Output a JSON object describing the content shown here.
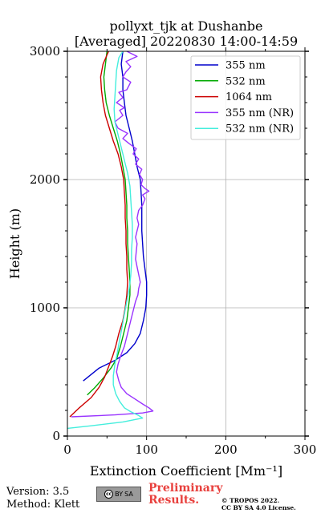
{
  "chart_data": {
    "type": "line",
    "title_line1": "pollyxt_tjk at Dushanbe",
    "title_line2": "[Averaged] 20220830 14:00-14:59",
    "xlabel": "Extinction Coefficient [Mm⁻¹]",
    "ylabel": "Height (m)",
    "xlim": [
      0,
      300
    ],
    "ylim": [
      0,
      3000
    ],
    "xticks": [
      0,
      100,
      200,
      300
    ],
    "yticks": [
      0,
      1000,
      2000,
      3000
    ],
    "grid": true,
    "legend_position": "top-right",
    "series": [
      {
        "name": "355 nm",
        "color": "#0000cc",
        "points": [
          [
            20,
            430
          ],
          [
            40,
            530
          ],
          [
            60,
            590
          ],
          [
            75,
            650
          ],
          [
            85,
            720
          ],
          [
            92,
            800
          ],
          [
            96,
            900
          ],
          [
            99,
            1000
          ],
          [
            100,
            1100
          ],
          [
            100,
            1200
          ],
          [
            98,
            1300
          ],
          [
            96,
            1400
          ],
          [
            95,
            1500
          ],
          [
            94,
            1600
          ],
          [
            94,
            1700
          ],
          [
            94,
            1800
          ],
          [
            93,
            1900
          ],
          [
            92,
            2000
          ],
          [
            88,
            2100
          ],
          [
            85,
            2200
          ],
          [
            82,
            2300
          ],
          [
            78,
            2400
          ],
          [
            74,
            2500
          ],
          [
            72,
            2600
          ],
          [
            70,
            2700
          ],
          [
            70,
            2800
          ],
          [
            68,
            2900
          ],
          [
            70,
            3000
          ]
        ]
      },
      {
        "name": "532 nm",
        "color": "#00aa00",
        "points": [
          [
            25,
            320
          ],
          [
            35,
            380
          ],
          [
            45,
            450
          ],
          [
            55,
            530
          ],
          [
            62,
            600
          ],
          [
            67,
            700
          ],
          [
            71,
            800
          ],
          [
            75,
            900
          ],
          [
            77,
            1000
          ],
          [
            79,
            1100
          ],
          [
            79,
            1200
          ],
          [
            78,
            1300
          ],
          [
            77,
            1400
          ],
          [
            76,
            1500
          ],
          [
            76,
            1600
          ],
          [
            75,
            1700
          ],
          [
            75,
            1800
          ],
          [
            74,
            1900
          ],
          [
            73,
            2000
          ],
          [
            70,
            2100
          ],
          [
            67,
            2200
          ],
          [
            63,
            2300
          ],
          [
            58,
            2400
          ],
          [
            53,
            2500
          ],
          [
            49,
            2600
          ],
          [
            47,
            2700
          ],
          [
            46,
            2800
          ],
          [
            48,
            2900
          ],
          [
            50,
            3000
          ]
        ]
      },
      {
        "name": "1064 nm",
        "color": "#cc0000",
        "points": [
          [
            3,
            150
          ],
          [
            15,
            220
          ],
          [
            30,
            300
          ],
          [
            40,
            380
          ],
          [
            47,
            460
          ],
          [
            52,
            540
          ],
          [
            57,
            620
          ],
          [
            61,
            700
          ],
          [
            65,
            800
          ],
          [
            70,
            900
          ],
          [
            73,
            1000
          ],
          [
            75,
            1100
          ],
          [
            76,
            1200
          ],
          [
            75,
            1300
          ],
          [
            75,
            1400
          ],
          [
            74,
            1500
          ],
          [
            74,
            1600
          ],
          [
            73,
            1700
          ],
          [
            73,
            1800
          ],
          [
            72,
            1900
          ],
          [
            71,
            2000
          ],
          [
            68,
            2100
          ],
          [
            64,
            2200
          ],
          [
            58,
            2300
          ],
          [
            53,
            2400
          ],
          [
            48,
            2500
          ],
          [
            45,
            2600
          ],
          [
            43,
            2700
          ],
          [
            42,
            2800
          ],
          [
            45,
            2900
          ],
          [
            52,
            3000
          ]
        ]
      },
      {
        "name": "355 nm (NR)",
        "color": "#9933ff",
        "points": [
          [
            5,
            150
          ],
          [
            60,
            165
          ],
          [
            95,
            180
          ],
          [
            108,
            195
          ],
          [
            103,
            220
          ],
          [
            95,
            250
          ],
          [
            85,
            290
          ],
          [
            75,
            330
          ],
          [
            68,
            380
          ],
          [
            65,
            430
          ],
          [
            62,
            500
          ],
          [
            64,
            560
          ],
          [
            67,
            620
          ],
          [
            72,
            700
          ],
          [
            76,
            800
          ],
          [
            80,
            900
          ],
          [
            84,
            1000
          ],
          [
            86,
            1050
          ],
          [
            89,
            1100
          ],
          [
            90,
            1150
          ],
          [
            92,
            1200
          ],
          [
            90,
            1260
          ],
          [
            88,
            1320
          ],
          [
            86,
            1380
          ],
          [
            87,
            1440
          ],
          [
            88,
            1500
          ],
          [
            86,
            1550
          ],
          [
            88,
            1600
          ],
          [
            90,
            1650
          ],
          [
            88,
            1700
          ],
          [
            90,
            1760
          ],
          [
            95,
            1800
          ],
          [
            98,
            1850
          ],
          [
            95,
            1880
          ],
          [
            103,
            1910
          ],
          [
            98,
            1930
          ],
          [
            93,
            1960
          ],
          [
            95,
            2000
          ],
          [
            91,
            2040
          ],
          [
            94,
            2080
          ],
          [
            86,
            2120
          ],
          [
            90,
            2160
          ],
          [
            83,
            2200
          ],
          [
            87,
            2240
          ],
          [
            78,
            2280
          ],
          [
            70,
            2320
          ],
          [
            76,
            2360
          ],
          [
            64,
            2400
          ],
          [
            60,
            2450
          ],
          [
            70,
            2500
          ],
          [
            66,
            2540
          ],
          [
            72,
            2560
          ],
          [
            62,
            2600
          ],
          [
            70,
            2640
          ],
          [
            65,
            2680
          ],
          [
            75,
            2700
          ],
          [
            80,
            2760
          ],
          [
            70,
            2800
          ],
          [
            74,
            2840
          ],
          [
            80,
            2880
          ],
          [
            74,
            2920
          ],
          [
            88,
            2960
          ],
          [
            75,
            3000
          ]
        ]
      },
      {
        "name": "532 nm (NR)",
        "color": "#44eedd",
        "points": [
          [
            0,
            60
          ],
          [
            30,
            80
          ],
          [
            70,
            110
          ],
          [
            95,
            140
          ],
          [
            90,
            160
          ],
          [
            80,
            190
          ],
          [
            72,
            220
          ],
          [
            66,
            270
          ],
          [
            61,
            330
          ],
          [
            58,
            400
          ],
          [
            58,
            470
          ],
          [
            60,
            560
          ],
          [
            63,
            650
          ],
          [
            66,
            750
          ],
          [
            69,
            850
          ],
          [
            72,
            950
          ],
          [
            75,
            1050
          ],
          [
            78,
            1150
          ],
          [
            80,
            1250
          ],
          [
            81,
            1350
          ],
          [
            81,
            1450
          ],
          [
            82,
            1550
          ],
          [
            82,
            1650
          ],
          [
            81,
            1750
          ],
          [
            80,
            1850
          ],
          [
            79,
            1950
          ],
          [
            76,
            2050
          ],
          [
            72,
            2150
          ],
          [
            68,
            2250
          ],
          [
            64,
            2350
          ],
          [
            60,
            2450
          ],
          [
            59,
            2550
          ],
          [
            60,
            2650
          ],
          [
            61,
            2750
          ],
          [
            62,
            2850
          ],
          [
            65,
            2950
          ],
          [
            70,
            3000
          ]
        ]
      }
    ]
  },
  "footer": {
    "version": "Version: 3.5",
    "method": "Method: Klett",
    "badge_cc": "cc",
    "badge_by": "BY",
    "badge_sa": "SA",
    "preliminary_line1": "Preliminary",
    "preliminary_line2": "Results.",
    "copyright_line1": "© TROPOS 2022.",
    "copyright_line2": "CC BY SA 4.0 License."
  }
}
